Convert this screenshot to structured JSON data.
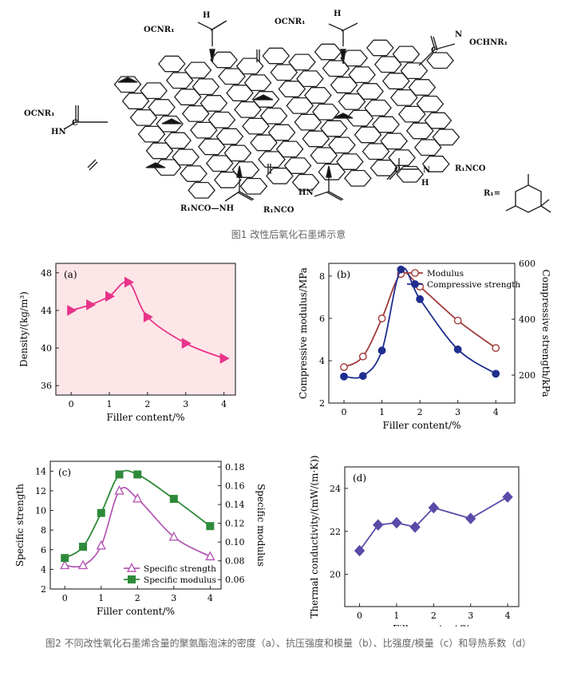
{
  "scheme": {
    "groups": {
      "g1": "OCNR₁",
      "g2": "H",
      "g3": "OCNR₁",
      "g4": "H",
      "g5": "OCHNR₁",
      "g6": "OCNR₁",
      "g7": "HN",
      "g8": "R₁NCO",
      "g9": "H",
      "g10": "HN",
      "g11": "R₁NCO—NH",
      "g12": "R₁NCO",
      "g13": "R₁=",
      "g14": "C",
      "g15": "C",
      "g16": "C",
      "g17": "N",
      "g18": "N"
    }
  },
  "fig1_caption": "图1 改性后氧化石墨烯示意",
  "fig2_caption": "图2 不同改性氧化石墨烯含量的聚氨酯泡沫的密度（a）、抗压强度和模量（b）、比强度/模量（c）和导热系数（d）",
  "chart_data": [
    {
      "id": "a",
      "type": "scatter",
      "panel_label": "(a)",
      "xlabel": "Filler content/%",
      "ylabel": "Density/(kg/m³)",
      "xlim": [
        -0.4,
        4.3
      ],
      "ylim": [
        35,
        49
      ],
      "xticks": [
        0,
        1,
        2,
        3,
        4
      ],
      "yticks": [
        36,
        40,
        44,
        48
      ],
      "series": [
        {
          "color": "#e8338a",
          "marker": "triangle-right",
          "x": [
            0,
            0.5,
            1.0,
            1.5,
            2.0,
            3.0,
            4.0
          ],
          "y": [
            44.0,
            44.6,
            45.5,
            47.0,
            43.3,
            40.5,
            38.9
          ]
        }
      ]
    },
    {
      "id": "b",
      "type": "line",
      "panel_label": "(b)",
      "xlabel": "Filler content/%",
      "ylabel": "Compressive modulus/MPa",
      "y2label": "Compressive strength/kPa",
      "xlim": [
        -0.4,
        4.5
      ],
      "ylim": [
        2,
        8.6
      ],
      "y2lim": [
        100,
        600
      ],
      "xticks": [
        0,
        1,
        2,
        3,
        4
      ],
      "yticks": [
        2,
        4,
        6,
        8
      ],
      "y2ticks": [
        200,
        400,
        600
      ],
      "legend": "top-right",
      "series": [
        {
          "name": "Modulus",
          "color": "#a23a3a",
          "marker": "circle-open",
          "axis": "left",
          "x": [
            0,
            0.5,
            1.0,
            1.5,
            2.0,
            3.0,
            4.0
          ],
          "y": [
            3.7,
            4.2,
            6.0,
            8.1,
            7.5,
            5.9,
            4.6
          ]
        },
        {
          "name": "Compressive strength",
          "color": "#1f2e8f",
          "marker": "circle",
          "axis": "right",
          "x": [
            0,
            0.5,
            1.0,
            1.5,
            2.0,
            3.0,
            4.0
          ],
          "y": [
            195,
            197,
            288,
            578,
            472,
            292,
            205
          ]
        }
      ]
    },
    {
      "id": "c",
      "type": "line",
      "panel_label": "(c)",
      "xlabel": "Filler content/%",
      "ylabel": "Specific strength",
      "y2label": "Specific modulus",
      "xlim": [
        -0.4,
        4.3
      ],
      "ylim": [
        2,
        15
      ],
      "y2lim": [
        0.05,
        0.186
      ],
      "xticks": [
        0,
        1,
        2,
        3,
        4
      ],
      "yticks": [
        2,
        4,
        6,
        8,
        10,
        12,
        14
      ],
      "y2ticks": [
        0.06,
        0.08,
        0.1,
        0.12,
        0.14,
        0.16,
        0.18
      ],
      "legend": "bottom-right",
      "series": [
        {
          "name": "Specific strength",
          "color": "#b55ab5",
          "marker": "triangle-open",
          "axis": "left",
          "x": [
            0,
            0.5,
            1.0,
            1.5,
            2.0,
            3.0,
            4.0
          ],
          "y": [
            4.4,
            4.4,
            6.4,
            12.0,
            11.2,
            7.3,
            5.3
          ]
        },
        {
          "name": "Specific modulus",
          "color": "#2e8a3a",
          "marker": "square",
          "axis": "right",
          "x": [
            0,
            0.5,
            1.0,
            1.5,
            2.0,
            3.0,
            4.0
          ],
          "y": [
            0.083,
            0.095,
            0.131,
            0.172,
            0.172,
            0.146,
            0.117
          ]
        }
      ]
    },
    {
      "id": "d",
      "type": "line",
      "panel_label": "(d)",
      "xlabel": "Filler content/%",
      "ylabel": "Thermal conductivity/(mW/(m·K))",
      "xlim": [
        -0.4,
        4.3
      ],
      "ylim": [
        18.5,
        25
      ],
      "xticks": [
        0,
        1,
        2,
        3,
        4
      ],
      "yticks": [
        20,
        22,
        24
      ],
      "series": [
        {
          "color": "#5b4aa8",
          "marker": "diamond",
          "x": [
            0,
            0.5,
            1.0,
            1.5,
            2.0,
            3.0,
            4.0
          ],
          "y": [
            21.1,
            22.3,
            22.4,
            22.2,
            23.1,
            22.6,
            23.6
          ]
        }
      ]
    }
  ]
}
